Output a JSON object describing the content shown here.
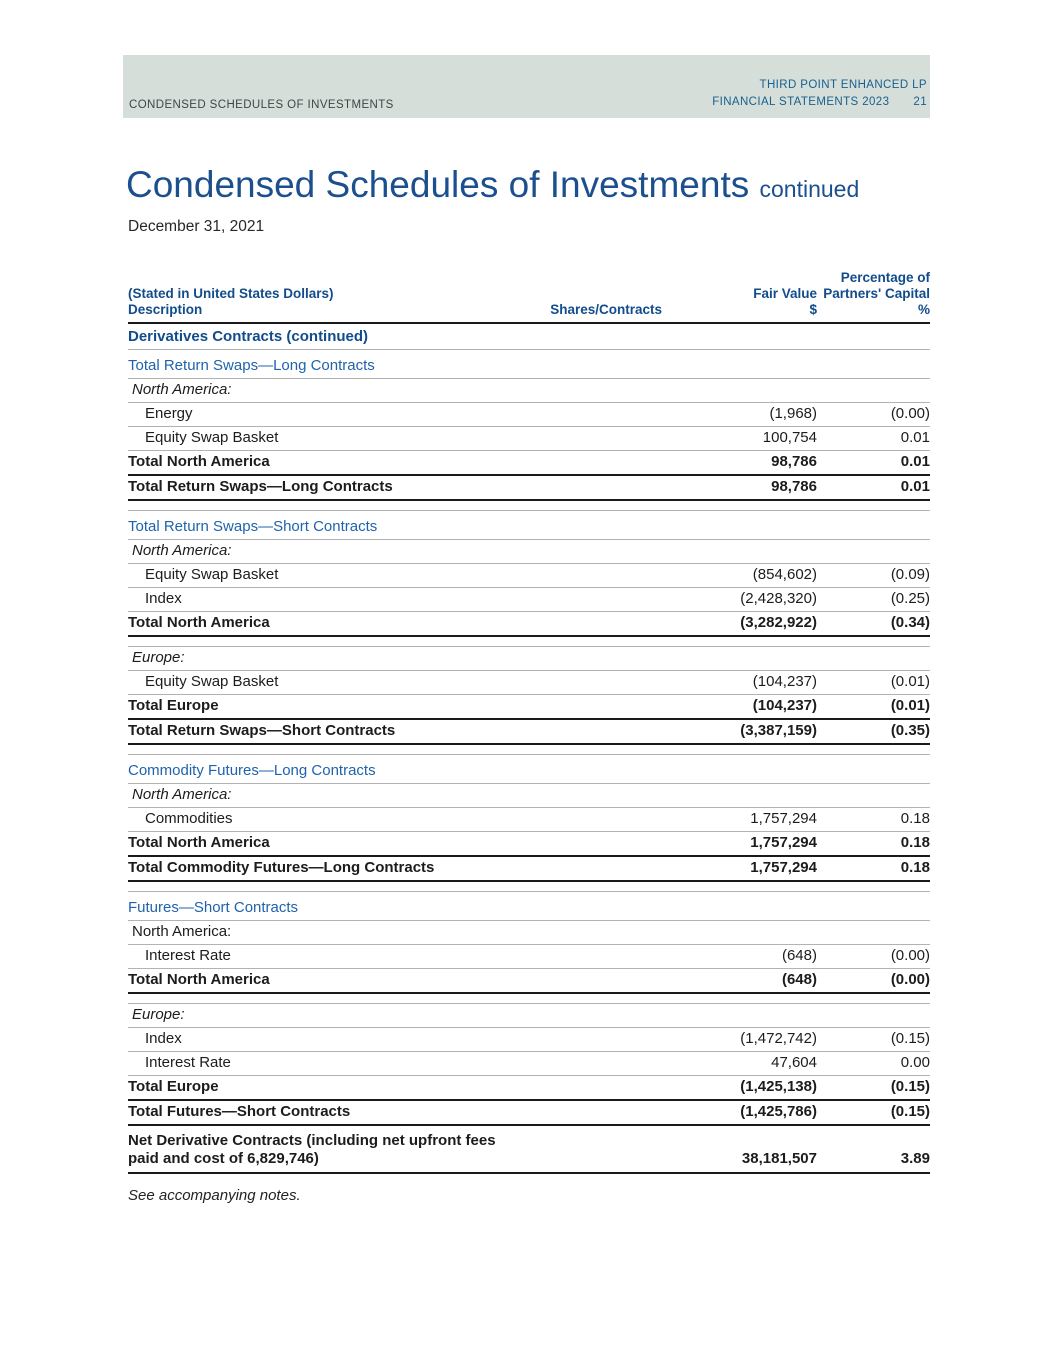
{
  "band": {
    "left": "CONDENSED SCHEDULES OF INVESTMENTS",
    "right_line1": "THIRD POINT ENHANCED LP",
    "right_line2": "FINANCIAL STATEMENTS 2023",
    "page_number": "21"
  },
  "title": {
    "main": "Condensed Schedules of Investments",
    "suffix": "continued",
    "date": "December 31, 2021"
  },
  "footnote": "See accompanying notes.",
  "colors": {
    "band-bg": "#d5ded8",
    "band-left": "#3d474b",
    "band-right": "#19618f",
    "title-blue": "#1c4f8e",
    "section-blue": "#2063ac",
    "bold-blue": "#114c8c",
    "rule-gray": "#b3b3b3",
    "rule-dark": "#1a1a1a",
    "body-text": "#1c1c1c"
  },
  "table": {
    "header": {
      "stated": "(Stated in United States Dollars)",
      "description": "Description",
      "shares": "Shares/Contracts",
      "fair_value_label": "Fair Value",
      "fair_value_unit": "$",
      "pct_line1": "Percentage of",
      "pct_line2": "Partners' Capital",
      "pct_unit": "%"
    },
    "rows": [
      {
        "kind": "section_bold",
        "label": "Derivatives Contracts (continued)"
      },
      {
        "kind": "section",
        "label": "Total Return Swaps—Long Contracts"
      },
      {
        "kind": "region",
        "label": "North America:",
        "italic": true
      },
      {
        "kind": "data",
        "label": "Energy",
        "fair": "(1,968)",
        "pct": "(0.00)"
      },
      {
        "kind": "data",
        "label": "Equity Swap Basket",
        "fair": "100,754",
        "pct": "0.01"
      },
      {
        "kind": "total",
        "label": "Total North America",
        "fair": "98,786",
        "pct": "0.01"
      },
      {
        "kind": "total",
        "label": "Total Return Swaps—Long Contracts",
        "fair": "98,786",
        "pct": "0.01"
      },
      {
        "kind": "spacer"
      },
      {
        "kind": "section",
        "label": "Total Return Swaps—Short Contracts"
      },
      {
        "kind": "region",
        "label": "North America:",
        "italic": true
      },
      {
        "kind": "data",
        "label": "Equity Swap Basket",
        "fair": "(854,602)",
        "pct": "(0.09)"
      },
      {
        "kind": "data",
        "label": "Index",
        "fair": "(2,428,320)",
        "pct": "(0.25)"
      },
      {
        "kind": "total",
        "label": "Total North America",
        "fair": "(3,282,922)",
        "pct": "(0.34)"
      },
      {
        "kind": "spacer"
      },
      {
        "kind": "region",
        "label": "Europe:",
        "italic": true
      },
      {
        "kind": "data",
        "label": "Equity Swap Basket",
        "fair": "(104,237)",
        "pct": "(0.01)"
      },
      {
        "kind": "total",
        "label": "Total Europe",
        "fair": "(104,237)",
        "pct": "(0.01)"
      },
      {
        "kind": "total",
        "label": "Total Return Swaps—Short Contracts",
        "fair": "(3,387,159)",
        "pct": "(0.35)"
      },
      {
        "kind": "spacer"
      },
      {
        "kind": "section",
        "label": "Commodity Futures—Long Contracts"
      },
      {
        "kind": "region",
        "label": "North America:",
        "italic": true
      },
      {
        "kind": "data",
        "label": "Commodities",
        "fair": "1,757,294",
        "pct": "0.18"
      },
      {
        "kind": "total",
        "label": "Total North America",
        "fair": "1,757,294",
        "pct": "0.18"
      },
      {
        "kind": "total",
        "label": "Total Commodity Futures—Long Contracts",
        "fair": "1,757,294",
        "pct": "0.18"
      },
      {
        "kind": "spacer"
      },
      {
        "kind": "section",
        "label": "Futures—Short Contracts"
      },
      {
        "kind": "region",
        "label": "North America:",
        "italic": false
      },
      {
        "kind": "data",
        "label": "Interest Rate",
        "fair": "(648)",
        "pct": "(0.00)"
      },
      {
        "kind": "total",
        "label": "Total North America",
        "fair": "(648)",
        "pct": "(0.00)"
      },
      {
        "kind": "spacer"
      },
      {
        "kind": "region",
        "label": "Europe:",
        "italic": true
      },
      {
        "kind": "data",
        "label": "Index",
        "fair": "(1,472,742)",
        "pct": "(0.15)"
      },
      {
        "kind": "data",
        "label": "Interest Rate",
        "fair": "47,604",
        "pct": "0.00"
      },
      {
        "kind": "total",
        "label": "Total Europe",
        "fair": "(1,425,138)",
        "pct": "(0.15)"
      },
      {
        "kind": "total",
        "label": "Total Futures—Short Contracts",
        "fair": "(1,425,786)",
        "pct": "(0.15)"
      },
      {
        "kind": "net",
        "label_lines": [
          "Net Derivative Contracts (including net upfront fees",
          "paid and cost of 6,829,746)"
        ],
        "fair": "38,181,507",
        "pct": "3.89"
      }
    ]
  }
}
